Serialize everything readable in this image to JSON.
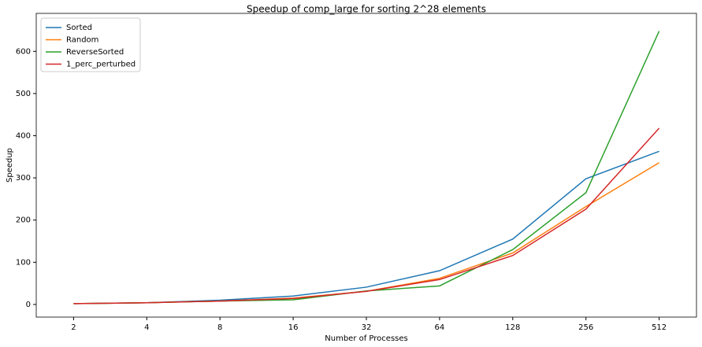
{
  "chart_data": {
    "type": "line",
    "title": "Speedup of comp_large for sorting 2^28 elements",
    "xlabel": "Number of Processes",
    "ylabel": "Speedup",
    "categories": [
      "2",
      "4",
      "8",
      "16",
      "32",
      "64",
      "128",
      "256",
      "512"
    ],
    "series": [
      {
        "name": "Sorted",
        "color": "#1f77b4",
        "values": [
          2,
          4,
          10,
          20,
          41,
          80,
          155,
          298,
          363
        ]
      },
      {
        "name": "Random",
        "color": "#ff7f0e",
        "values": [
          2,
          4,
          8,
          15,
          31,
          62,
          122,
          232,
          336
        ]
      },
      {
        "name": "ReverseSorted",
        "color": "#2ca02c",
        "values": [
          2,
          4,
          8,
          11,
          32,
          44,
          130,
          265,
          648
        ]
      },
      {
        "name": "1_perc_perturbed",
        "color": "#d62728",
        "values": [
          2,
          4,
          8,
          14,
          31,
          59,
          116,
          226,
          418
        ]
      }
    ],
    "ylim": [
      -30,
      690
    ],
    "yticks": [
      0,
      100,
      200,
      300,
      400,
      500,
      600
    ],
    "legend": "upper left"
  }
}
